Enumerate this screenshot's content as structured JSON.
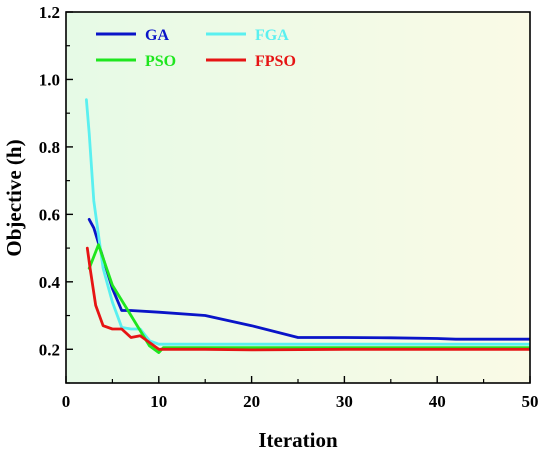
{
  "chart_data": {
    "type": "line",
    "title": "",
    "xlabel": "Iteration",
    "ylabel": "Objective (h)",
    "xlim": [
      0,
      50
    ],
    "ylim": [
      0.1,
      1.2
    ],
    "x_ticks": [
      0,
      10,
      20,
      30,
      40,
      50
    ],
    "y_ticks": [
      0.2,
      0.4,
      0.6,
      0.8,
      1.0,
      1.2
    ],
    "x_tick_labels": [
      "0",
      "10",
      "20",
      "30",
      "40",
      "50"
    ],
    "y_tick_labels": [
      "0.2",
      "0.4",
      "0.6",
      "0.8",
      "1.0",
      "1.2"
    ],
    "grid": false,
    "legend_position": "top-left",
    "background_gradient": [
      "#e6fae6",
      "#fafae6"
    ],
    "series": [
      {
        "name": "GA",
        "color": "#0a14c8",
        "points": [
          [
            2.5,
            0.585
          ],
          [
            3,
            0.56
          ],
          [
            4,
            0.47
          ],
          [
            5,
            0.38
          ],
          [
            6,
            0.315
          ],
          [
            7,
            0.315
          ],
          [
            10,
            0.31
          ],
          [
            15,
            0.3
          ],
          [
            20,
            0.27
          ],
          [
            25,
            0.235
          ],
          [
            30,
            0.235
          ],
          [
            35,
            0.234
          ],
          [
            40,
            0.232
          ],
          [
            42,
            0.23
          ],
          [
            45,
            0.23
          ],
          [
            50,
            0.23
          ]
        ]
      },
      {
        "name": "FGA",
        "color": "#5af0f0",
        "points": [
          [
            2.2,
            0.94
          ],
          [
            2.5,
            0.84
          ],
          [
            3,
            0.64
          ],
          [
            4,
            0.44
          ],
          [
            5,
            0.34
          ],
          [
            6,
            0.265
          ],
          [
            7,
            0.26
          ],
          [
            8,
            0.26
          ],
          [
            9,
            0.225
          ],
          [
            10,
            0.215
          ],
          [
            15,
            0.215
          ],
          [
            20,
            0.215
          ],
          [
            30,
            0.215
          ],
          [
            40,
            0.215
          ],
          [
            50,
            0.215
          ]
        ]
      },
      {
        "name": "PSO",
        "color": "#1ee61e",
        "points": [
          [
            2.5,
            0.44
          ],
          [
            3.5,
            0.51
          ],
          [
            5,
            0.39
          ],
          [
            7,
            0.3
          ],
          [
            9,
            0.21
          ],
          [
            10,
            0.19
          ],
          [
            10.5,
            0.205
          ],
          [
            15,
            0.205
          ],
          [
            20,
            0.205
          ],
          [
            30,
            0.205
          ],
          [
            40,
            0.205
          ],
          [
            50,
            0.205
          ]
        ]
      },
      {
        "name": "FPSO",
        "color": "#e61414",
        "points": [
          [
            2.3,
            0.5
          ],
          [
            2.6,
            0.44
          ],
          [
            3.2,
            0.33
          ],
          [
            4,
            0.27
          ],
          [
            5,
            0.26
          ],
          [
            6,
            0.26
          ],
          [
            7,
            0.235
          ],
          [
            8,
            0.24
          ],
          [
            10,
            0.2
          ],
          [
            15,
            0.2
          ],
          [
            20,
            0.198
          ],
          [
            30,
            0.2
          ],
          [
            40,
            0.2
          ],
          [
            50,
            0.2
          ]
        ]
      }
    ]
  }
}
